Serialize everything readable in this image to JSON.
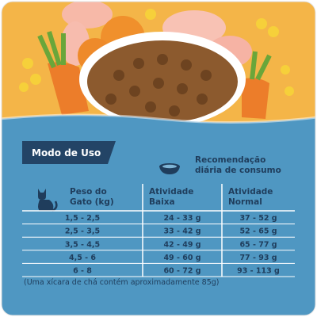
{
  "header": {
    "section_title": "Modo de Uso",
    "recommendation": [
      "Recomendação",
      "diária de consumo"
    ]
  },
  "table": {
    "columns": [
      [
        "Peso do",
        "Gato (kg)"
      ],
      [
        "Atividade",
        "Baixa"
      ],
      [
        "Atividade",
        "Normal"
      ]
    ],
    "rows": [
      [
        "1,5 - 2,5",
        "24 - 33 g",
        "37 - 52 g"
      ],
      [
        "2,5 - 3,5",
        "33 - 42 g",
        "52 - 65 g"
      ],
      [
        "3,5 - 4,5",
        "42 - 49 g",
        "65 - 77 g"
      ],
      [
        "4,5 - 6",
        "49 - 60 g",
        "77 - 93 g"
      ],
      [
        "6 - 8",
        "60 - 72 g",
        "93 - 113 g"
      ]
    ]
  },
  "footnote": "(Uma xícara  de chá contém aproximadamente 85g)"
}
